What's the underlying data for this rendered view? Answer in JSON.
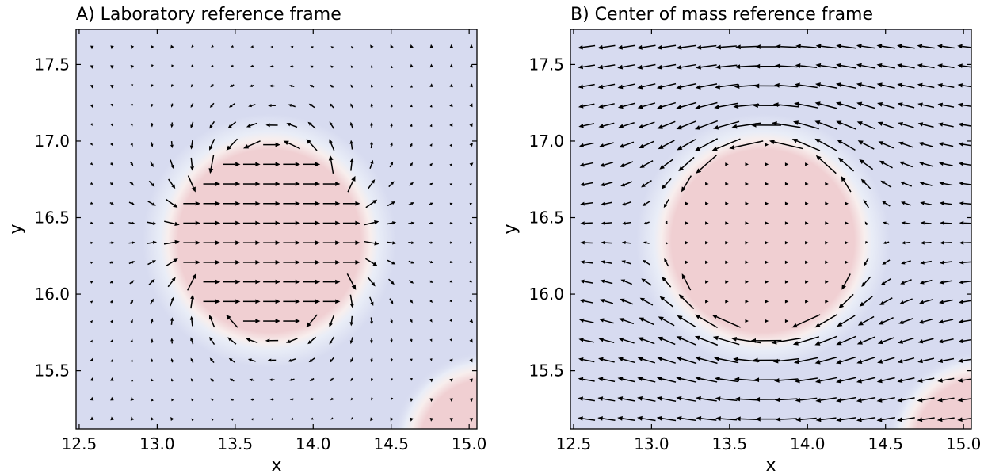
{
  "chart_data": [
    {
      "type": "quiver",
      "title": "A) Laboratory reference frame",
      "xlabel": "x",
      "ylabel": "y",
      "xlim": [
        12.48,
        15.05
      ],
      "ylim": [
        15.12,
        17.73
      ],
      "xticks": [
        "12.5",
        "13.0",
        "13.5",
        "14.0",
        "14.5",
        "15.0"
      ],
      "yticks": [
        "15.5",
        "16.0",
        "16.5",
        "17.0",
        "17.5"
      ],
      "grid": false,
      "background_field": {
        "droplets": [
          {
            "cx": 13.73,
            "cy": 16.39,
            "r": 0.62
          },
          {
            "cx": 15.18,
            "cy": 15.05,
            "r": 0.45
          }
        ],
        "inside_color": "#f0cfd2",
        "outside_color": "#d7dbf0"
      },
      "vector_field": {
        "frame": "laboratory",
        "droplet_velocity": [
          1,
          0
        ],
        "grid_spacing": 0.128,
        "arrow_color": "#000000"
      }
    },
    {
      "type": "quiver",
      "title": "B) Center of mass reference frame",
      "xlabel": "x",
      "ylabel": "y",
      "xlim": [
        12.48,
        15.05
      ],
      "ylim": [
        15.12,
        17.73
      ],
      "xticks": [
        "12.5",
        "13.0",
        "13.5",
        "14.0",
        "14.5",
        "15.0"
      ],
      "yticks": [
        "15.5",
        "16.0",
        "16.5",
        "17.0",
        "17.5"
      ],
      "grid": false,
      "background_field": {
        "droplets": [
          {
            "cx": 13.73,
            "cy": 16.39,
            "r": 0.62
          },
          {
            "cx": 15.18,
            "cy": 15.05,
            "r": 0.45
          }
        ],
        "inside_color": "#f0cfd2",
        "outside_color": "#d7dbf0"
      },
      "vector_field": {
        "frame": "center_of_mass",
        "droplet_velocity": [
          0,
          0
        ],
        "grid_spacing": 0.128,
        "arrow_color": "#000000"
      }
    }
  ]
}
